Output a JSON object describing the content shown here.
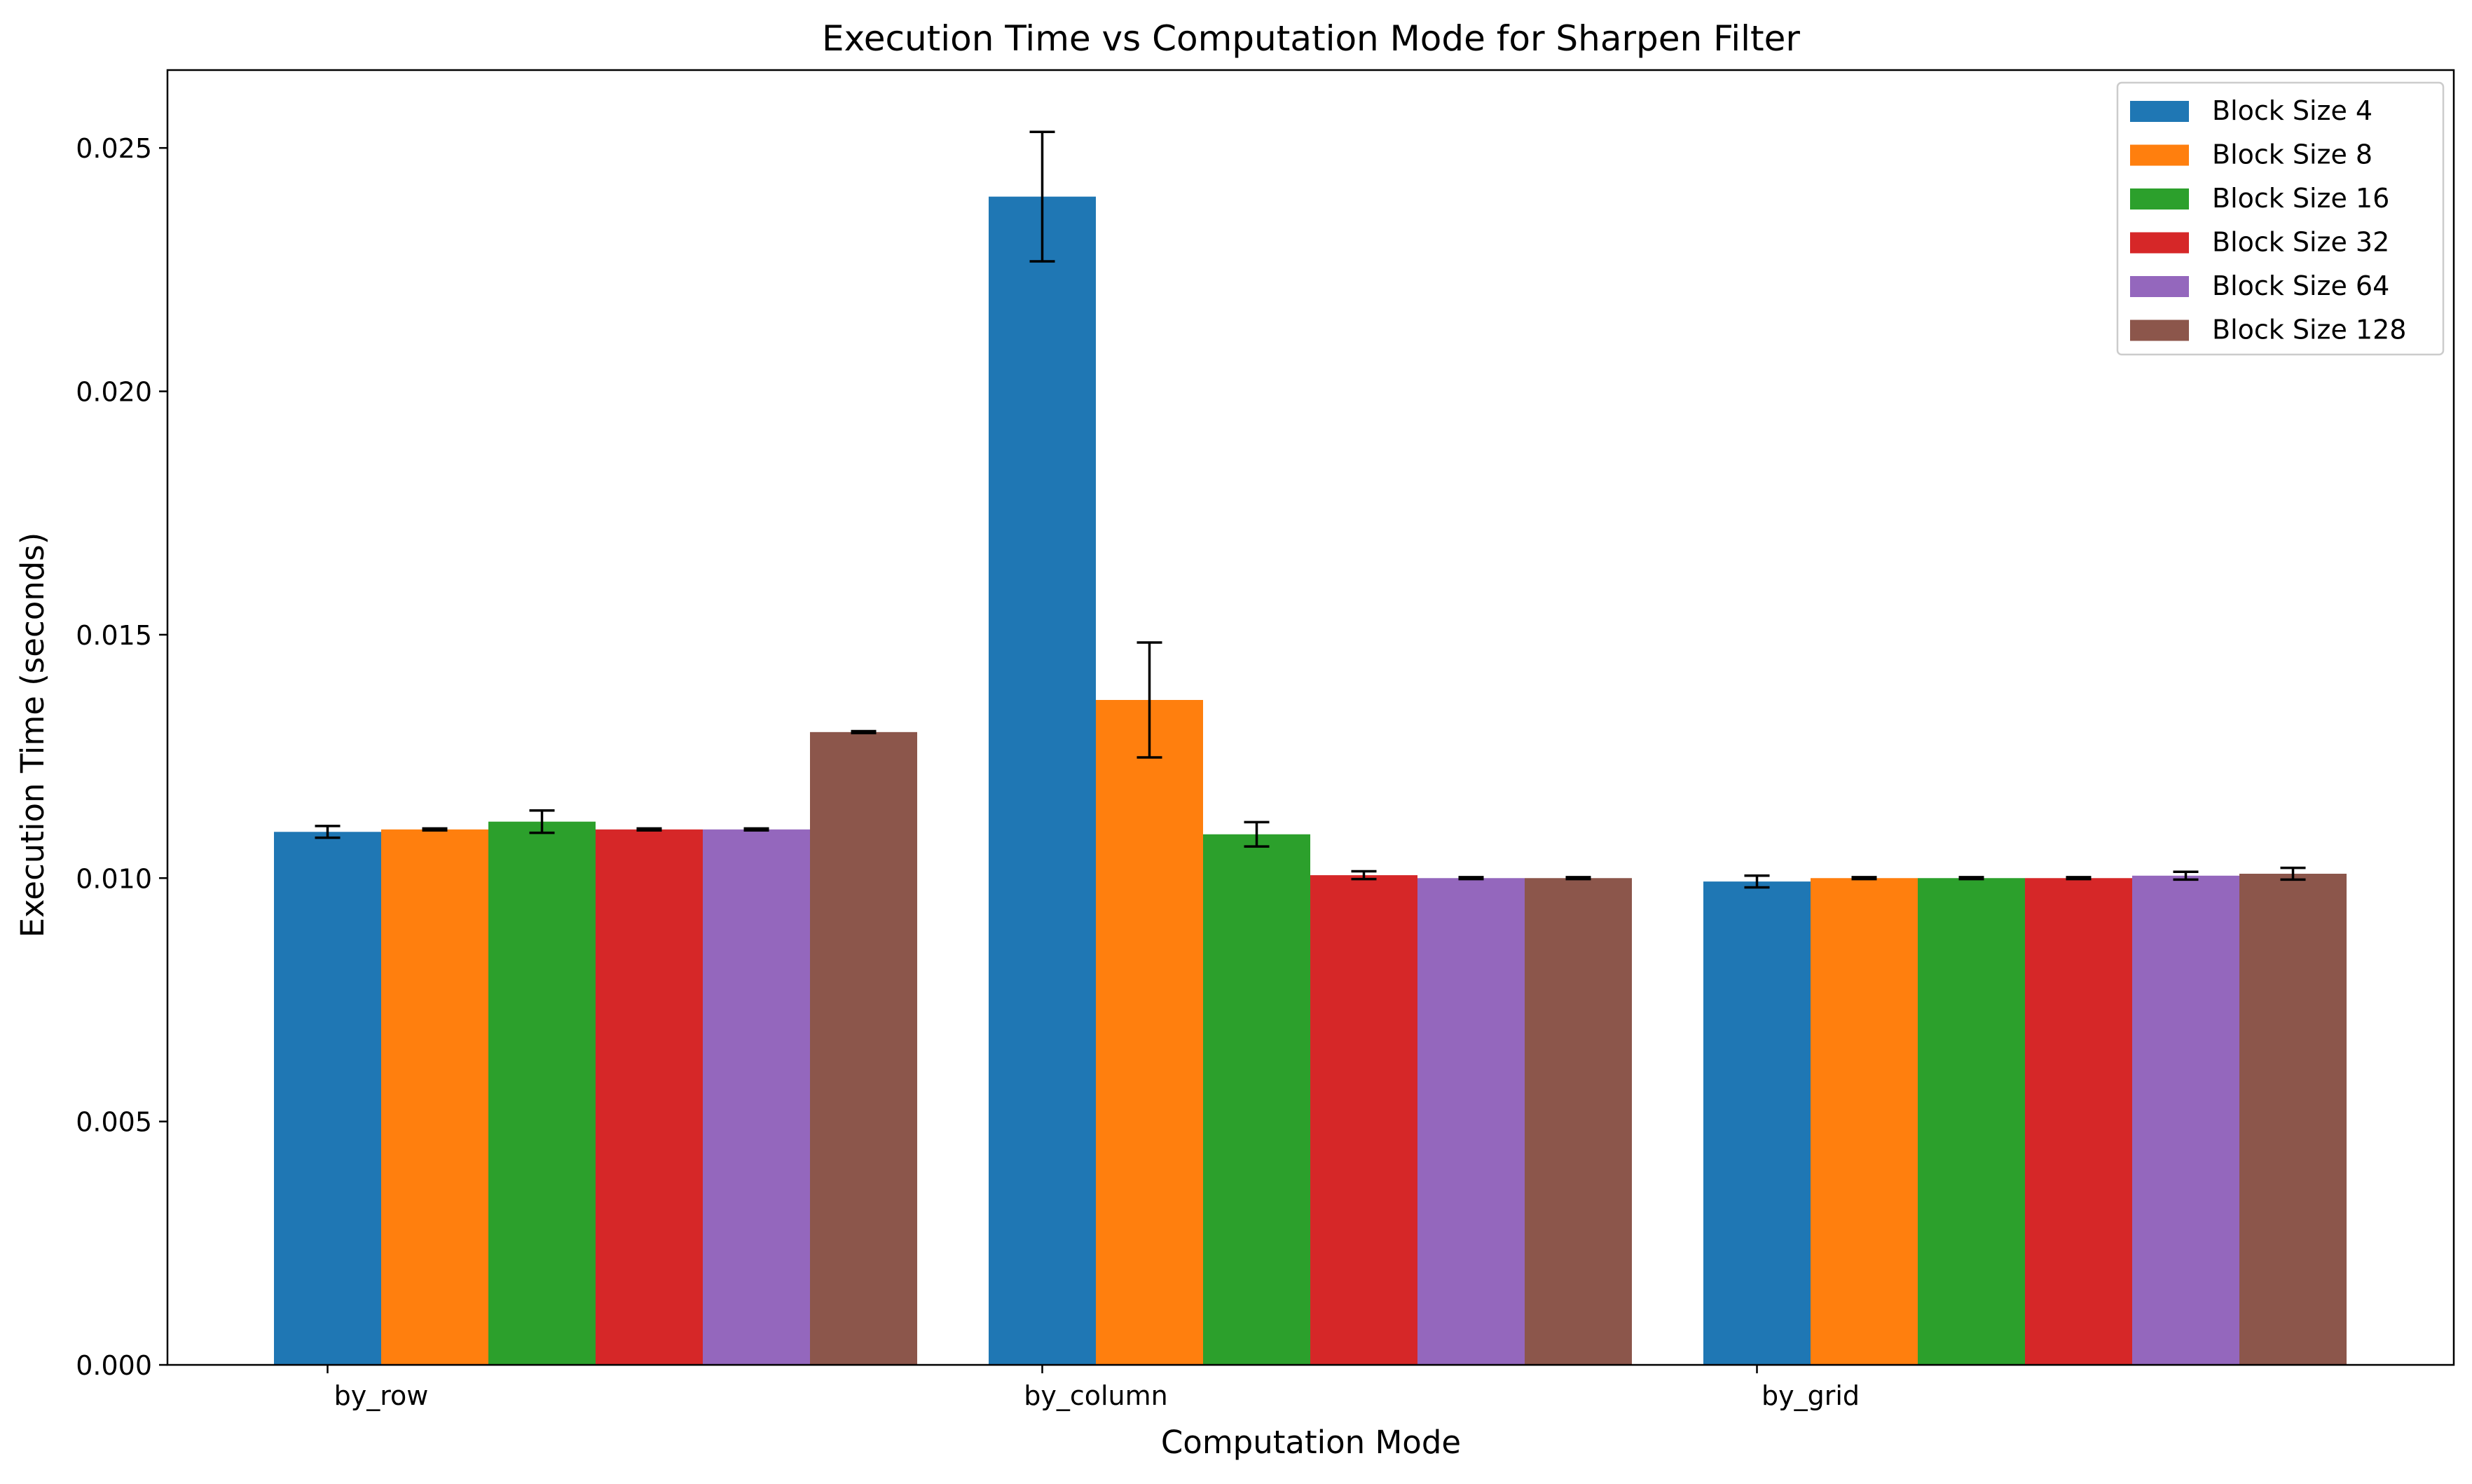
{
  "chart_data": {
    "type": "bar",
    "title": "Execution Time vs Computation Mode for Sharpen Filter",
    "xlabel": "Computation Mode",
    "ylabel": "Execution Time (seconds)",
    "categories": [
      "by_row",
      "by_column",
      "by_grid"
    ],
    "ylim": [
      0,
      0.0266
    ],
    "yticks": [
      0.0,
      0.005,
      0.01,
      0.015,
      0.02,
      0.025
    ],
    "ytick_labels": [
      "0.000",
      "0.005",
      "0.010",
      "0.015",
      "0.020",
      "0.025"
    ],
    "legend_position": "top-right",
    "grid": false,
    "series": [
      {
        "name": "Block Size 4",
        "color": "#1f77b4",
        "values": [
          0.01095,
          0.024,
          0.00993
        ],
        "errors": [
          0.00012,
          0.00133,
          0.00012
        ]
      },
      {
        "name": "Block Size 8",
        "color": "#ff7f0e",
        "values": [
          0.011,
          0.01366,
          0.01
        ],
        "errors": [
          2e-05,
          0.00118,
          2e-05
        ]
      },
      {
        "name": "Block Size 16",
        "color": "#2ca02c",
        "values": [
          0.01116,
          0.0109,
          0.01
        ],
        "errors": [
          0.00023,
          0.00025,
          2e-05
        ]
      },
      {
        "name": "Block Size 32",
        "color": "#d62728",
        "values": [
          0.011,
          0.01006,
          0.01
        ],
        "errors": [
          2e-05,
          8e-05,
          2e-05
        ]
      },
      {
        "name": "Block Size 64",
        "color": "#9467bd",
        "values": [
          0.011,
          0.01,
          0.01005
        ],
        "errors": [
          2e-05,
          2e-05,
          8e-05
        ]
      },
      {
        "name": "Block Size 128",
        "color": "#8c564b",
        "values": [
          0.013,
          0.01,
          0.01009
        ],
        "errors": [
          2e-05,
          2e-05,
          0.00012
        ]
      }
    ]
  }
}
